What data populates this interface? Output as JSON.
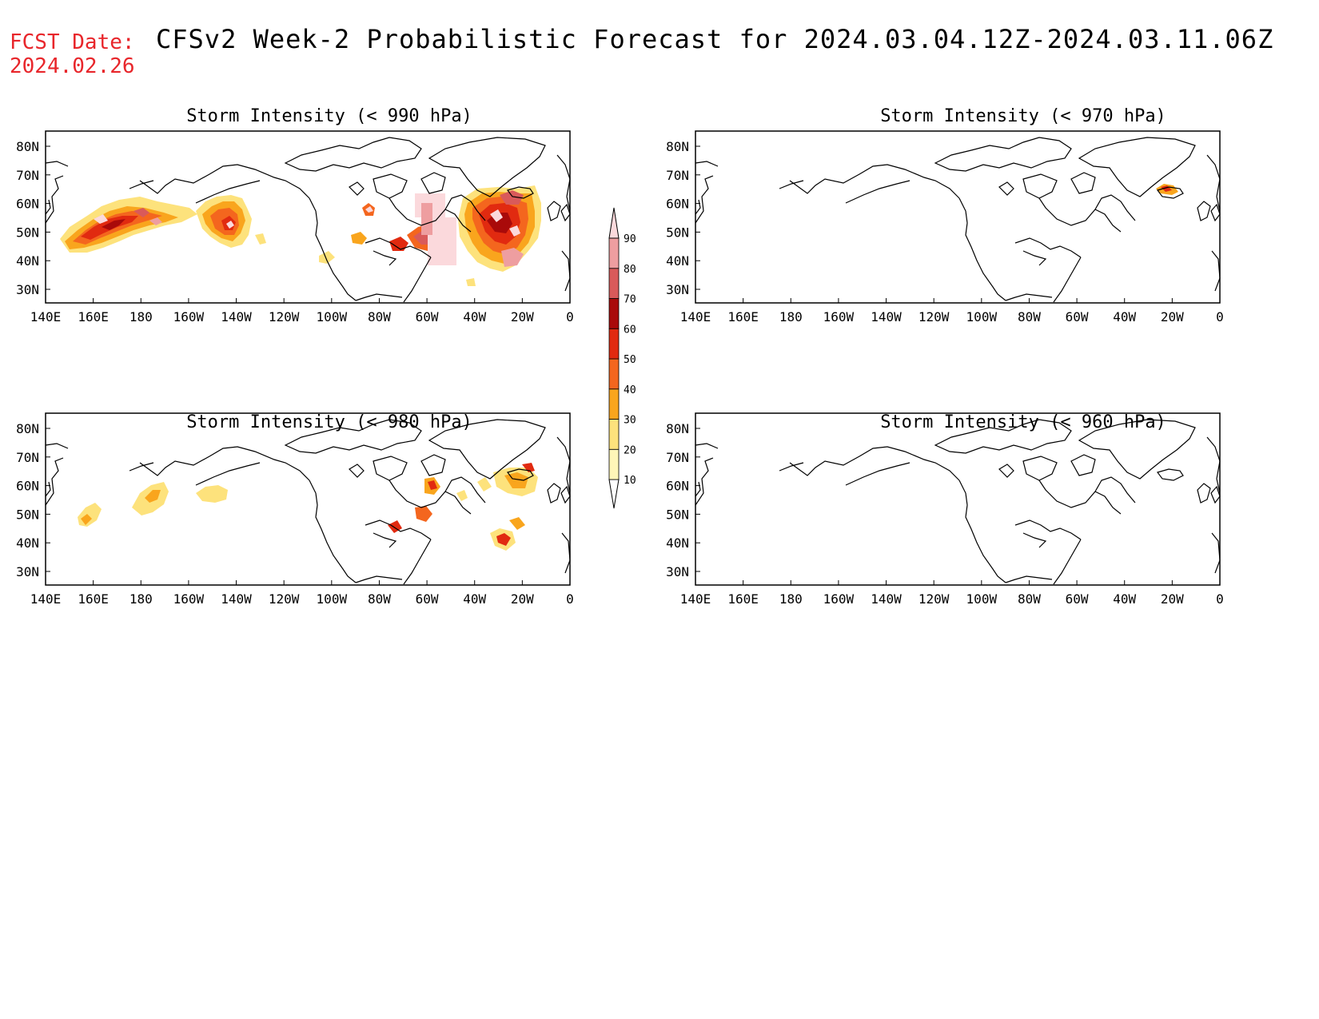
{
  "header": {
    "fcst_label": "FCST Date:",
    "fcst_date": "2024.02.26",
    "title": "CFSv2 Week-2 Probabilistic Forecast for 2024.03.04.12Z-2024.03.11.06Z"
  },
  "axes": {
    "lon_ticks": [
      "140E",
      "160E",
      "180",
      "160W",
      "140W",
      "120W",
      "100W",
      "80W",
      "60W",
      "40W",
      "20W",
      "0"
    ],
    "lat_ticks": [
      "80N",
      "70N",
      "60N",
      "50N",
      "40N",
      "30N"
    ]
  },
  "panels": [
    {
      "id": "p990",
      "title": "Storm Intensity (< 990 hPa)"
    },
    {
      "id": "p970",
      "title": "Storm Intensity (< 970 hPa)"
    },
    {
      "id": "p980",
      "title": "Storm Intensity (< 980 hPa)"
    },
    {
      "id": "p960",
      "title": "Storm Intensity (< 960 hPa)"
    }
  ],
  "colorbar": {
    "levels": [
      "10",
      "20",
      "30",
      "40",
      "50",
      "60",
      "70",
      "80",
      "90"
    ],
    "colors": [
      "#fff6b8",
      "#fde27c",
      "#f9a51d",
      "#f4661e",
      "#e12a10",
      "#a90a0a",
      "#d95a5a",
      "#ee9ea0",
      "#fbd9dc"
    ]
  },
  "colors": {
    "fcst_text": "#e8262b",
    "coastline": "#000000"
  }
}
